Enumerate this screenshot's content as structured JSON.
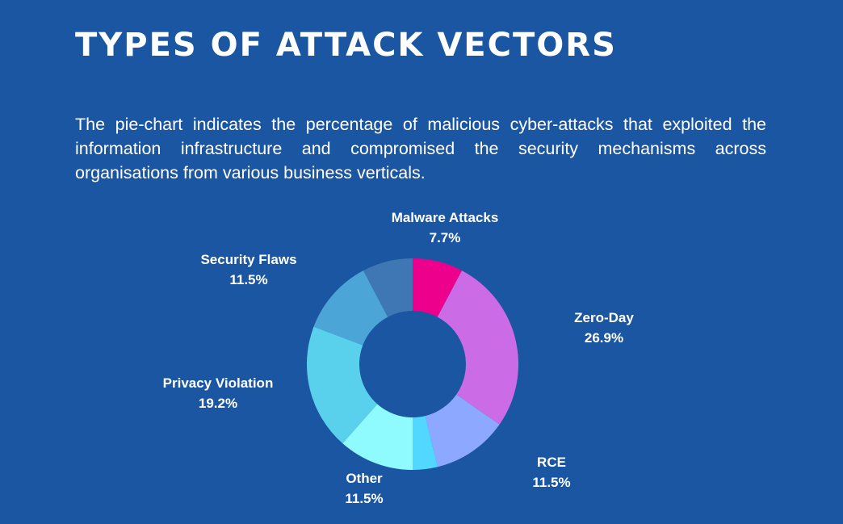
{
  "header": {
    "title": "Types of Attack Vectors",
    "description": "The pie-chart indicates the percentage of malicious cyber-attacks that exploited the information infrastructure and compromised the security mechanisms across organisations from various business verticals."
  },
  "chart_data": {
    "type": "pie",
    "variant": "donut",
    "title": "",
    "legend": "none",
    "slices": [
      {
        "label": "Malware Attacks",
        "value": 7.7,
        "display": "7.7%",
        "color": "#ec008c"
      },
      {
        "label": "Zero-Day",
        "value": 26.9,
        "display": "26.9%",
        "color": "#cb6ce6"
      },
      {
        "label": "RCE",
        "value": 11.5,
        "display": "11.5%",
        "color": "#8ca9ff"
      },
      {
        "label": "",
        "value": 3.8,
        "display": "",
        "color": "#52d7ff"
      },
      {
        "label": "Other",
        "value": 11.5,
        "display": "11.5%",
        "color": "#8ffbff"
      },
      {
        "label": "Privacy Violation",
        "value": 19.2,
        "display": "19.2%",
        "color": "#5ad1ec"
      },
      {
        "label": "Security Flaws",
        "value": 11.5,
        "display": "11.5%",
        "color": "#4ba5d6"
      },
      {
        "label": "",
        "value": 7.7,
        "display": "",
        "color": "#3f76b4"
      }
    ]
  }
}
